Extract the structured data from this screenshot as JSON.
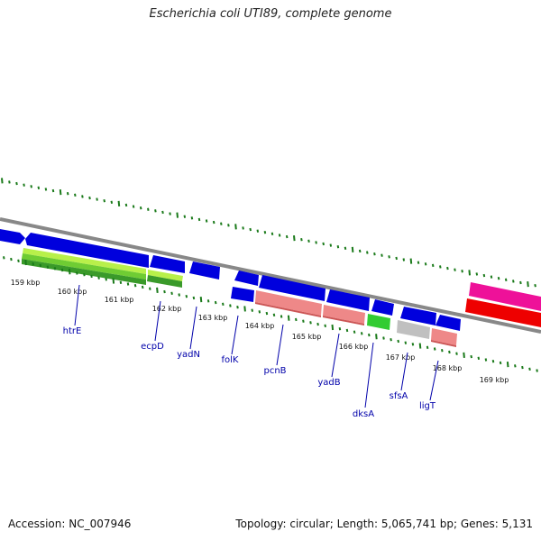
{
  "title": "Escherichia coli UTI89, complete genome",
  "footer": {
    "accession": "Accession: NC_007946",
    "topology": "Topology: circular; Length: 5,065,741 bp; Genes: 5,131"
  },
  "colors": {
    "forward_gene": "#0000dd",
    "backbone": "#888888",
    "tick": "#1a7a1a",
    "label": "#0000aa",
    "light_green": "#b8f04a",
    "dark_green": "#3a9a2a",
    "salmon": "#ee8888",
    "grey_gene": "#c0c0c0",
    "bright_green": "#33cc33",
    "magenta": "#ee1199",
    "red": "#ee0000"
  },
  "scale": {
    "unit": "kbp",
    "labels": [
      "159 kbp",
      "160 kbp",
      "161 kbp",
      "162 kbp",
      "163 kbp",
      "164 kbp",
      "165 kbp",
      "166 kbp",
      "167 kbp",
      "168 kbp",
      "169 kbp"
    ]
  },
  "genes": [
    {
      "name": "htrE",
      "kb": 160.0
    },
    {
      "name": "ecpD",
      "kb": 161.9
    },
    {
      "name": "yadN",
      "kb": 162.6
    },
    {
      "name": "folK",
      "kb": 163.5
    },
    {
      "name": "pcnB",
      "kb": 164.4
    },
    {
      "name": "yadB",
      "kb": 165.7
    },
    {
      "name": "dksA",
      "kb": 166.3
    },
    {
      "name": "sfsA",
      "kb": 167.1
    },
    {
      "name": "ligT",
      "kb": 167.6
    }
  ]
}
